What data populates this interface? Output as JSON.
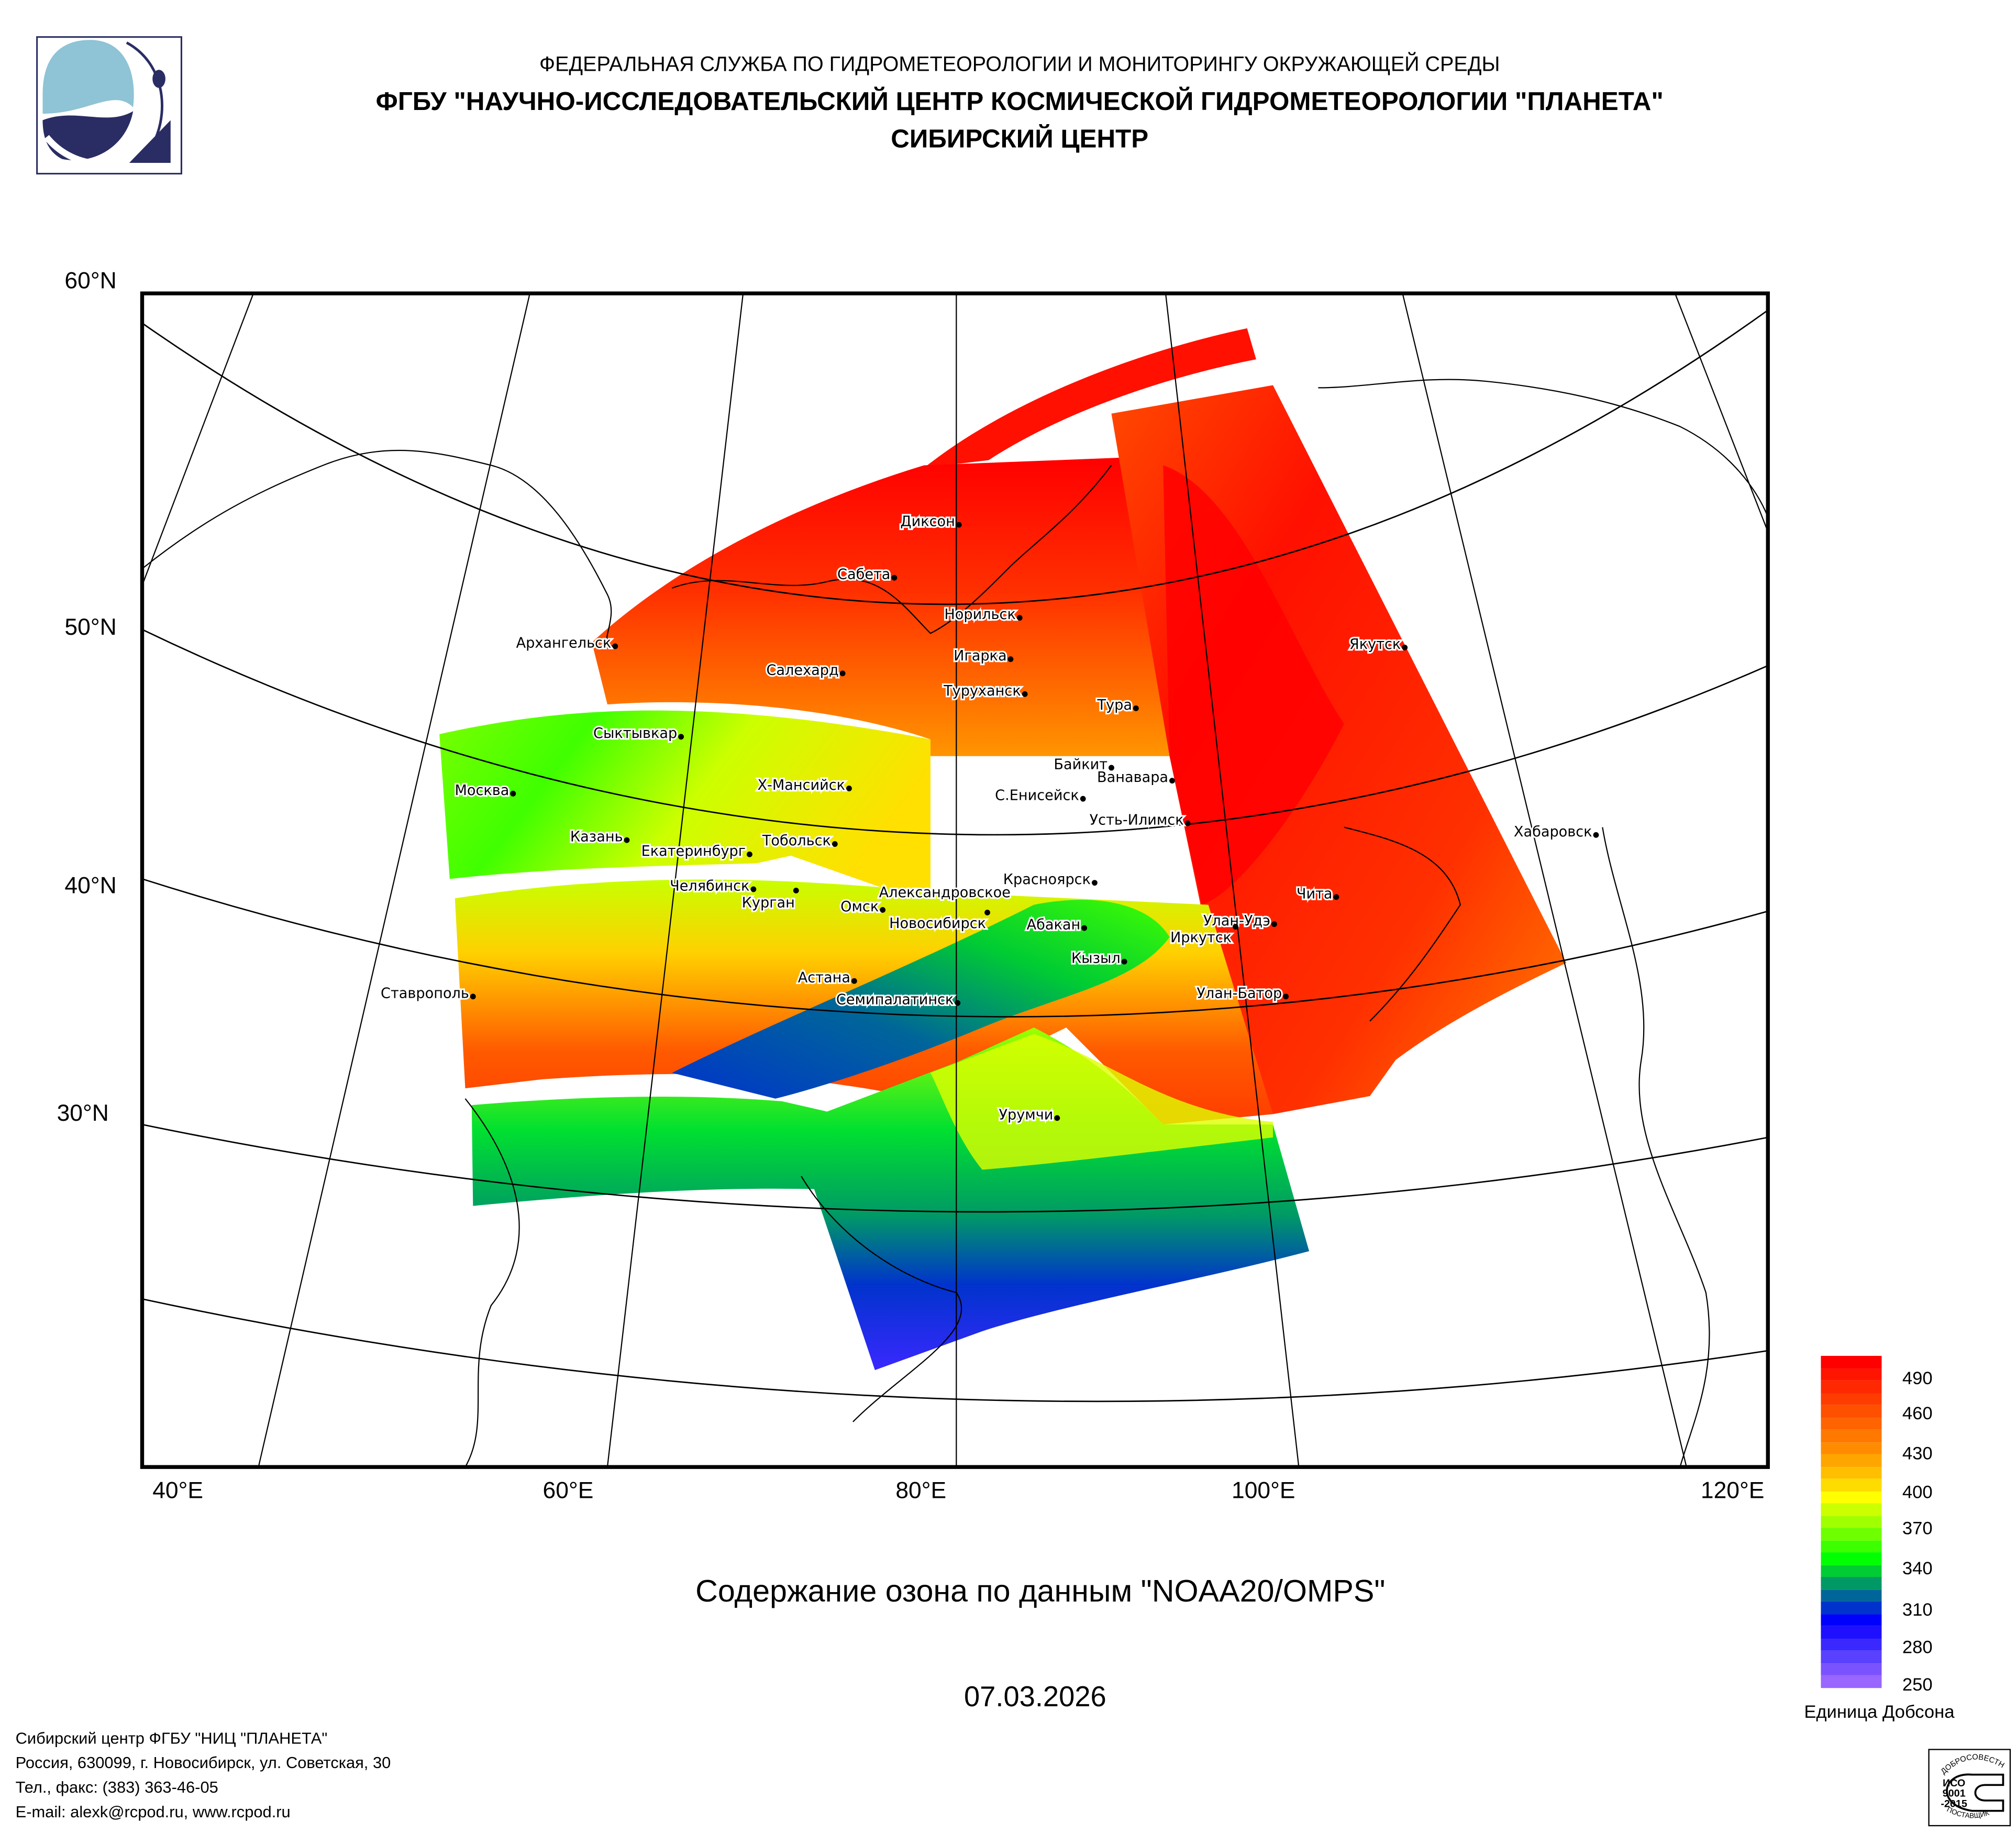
{
  "header": {
    "line1": "ФЕДЕРАЛЬНАЯ СЛУЖБА ПО ГИДРОМЕТЕОРОЛОГИИ И МОНИТОРИНГУ ОКРУЖАЮЩЕЙ СРЕДЫ",
    "line2": "ФГБУ \"НАУЧНО-ИССЛЕДОВАТЕЛЬСКИЙ ЦЕНТР КОСМИЧЕСКОЙ ГИДРОМЕТЕОРОЛОГИИ \"ПЛАНЕТА\"",
    "line3": "СИБИРСКИЙ ЦЕНТР"
  },
  "map": {
    "lat_labels": [
      "60°N",
      "50°N",
      "40°N",
      "30°N"
    ],
    "lon_labels": [
      "40°E",
      "60°E",
      "80°E",
      "100°E",
      "120°E"
    ],
    "cities": [
      "Диксон",
      "Сабета",
      "Норильск",
      "Архангельск",
      "Игарка",
      "Салехард",
      "Туруханск",
      "Тура",
      "Якутск",
      "Сыктывкар",
      "Х-Мансийск",
      "Байкит",
      "Ванавара",
      "Москва",
      "С.Енисейск",
      "Усть-Илимск",
      "Хабаровск",
      "Казань",
      "Тобольск",
      "Екатеринбург",
      "Челябинск",
      "Курган",
      "Александровское",
      "Омск",
      "Новосибирск",
      "Красноярск",
      "Чита",
      "Абакан",
      "Улан-Удэ",
      "Иркутск",
      "Кызыл",
      "Ставрополь",
      "Астана",
      "Семипалатинск",
      "Улан-Батор",
      "Урумчи"
    ]
  },
  "caption": "Содержание озона по данным \"NOAA20/OMPS\"",
  "date": "07.03.2026",
  "legend": {
    "unit": "Единица Добсона",
    "labels": [
      "490",
      "460",
      "430",
      "400",
      "370",
      "340",
      "310",
      "280",
      "250"
    ],
    "colors": [
      "#ff0000",
      "#ff1400",
      "#ff2800",
      "#ff3c00",
      "#ff5000",
      "#ff6400",
      "#ff7800",
      "#ff8c00",
      "#ffa500",
      "#ffbe00",
      "#ffdc00",
      "#ffff00",
      "#ccff00",
      "#a0ff00",
      "#6eff00",
      "#3cff00",
      "#00ff00",
      "#00cc33",
      "#009966",
      "#006699",
      "#0033cc",
      "#0000ff",
      "#1e10ff",
      "#3a28ff",
      "#5a40ff",
      "#7a52ff",
      "#9966ff"
    ]
  },
  "footer": {
    "line1": "Сибирский центр ФГБУ \"НИЦ \"ПЛАНЕТА\"",
    "line2": "Россия, 630099, г. Новосибирск, ул. Советская, 30",
    "line3": "Тел., факс: (383) 363-46-05",
    "line4": "E-mail: alexk@rcpod.ru, www.rcpod.ru"
  },
  "iso_badge": {
    "top": "ДОБРОСОВЕСТНЫЙ",
    "mid1": "ИСО",
    "mid2": "9001",
    "mid3": "-2015",
    "bottom": "ПОСТАВЩИК"
  }
}
